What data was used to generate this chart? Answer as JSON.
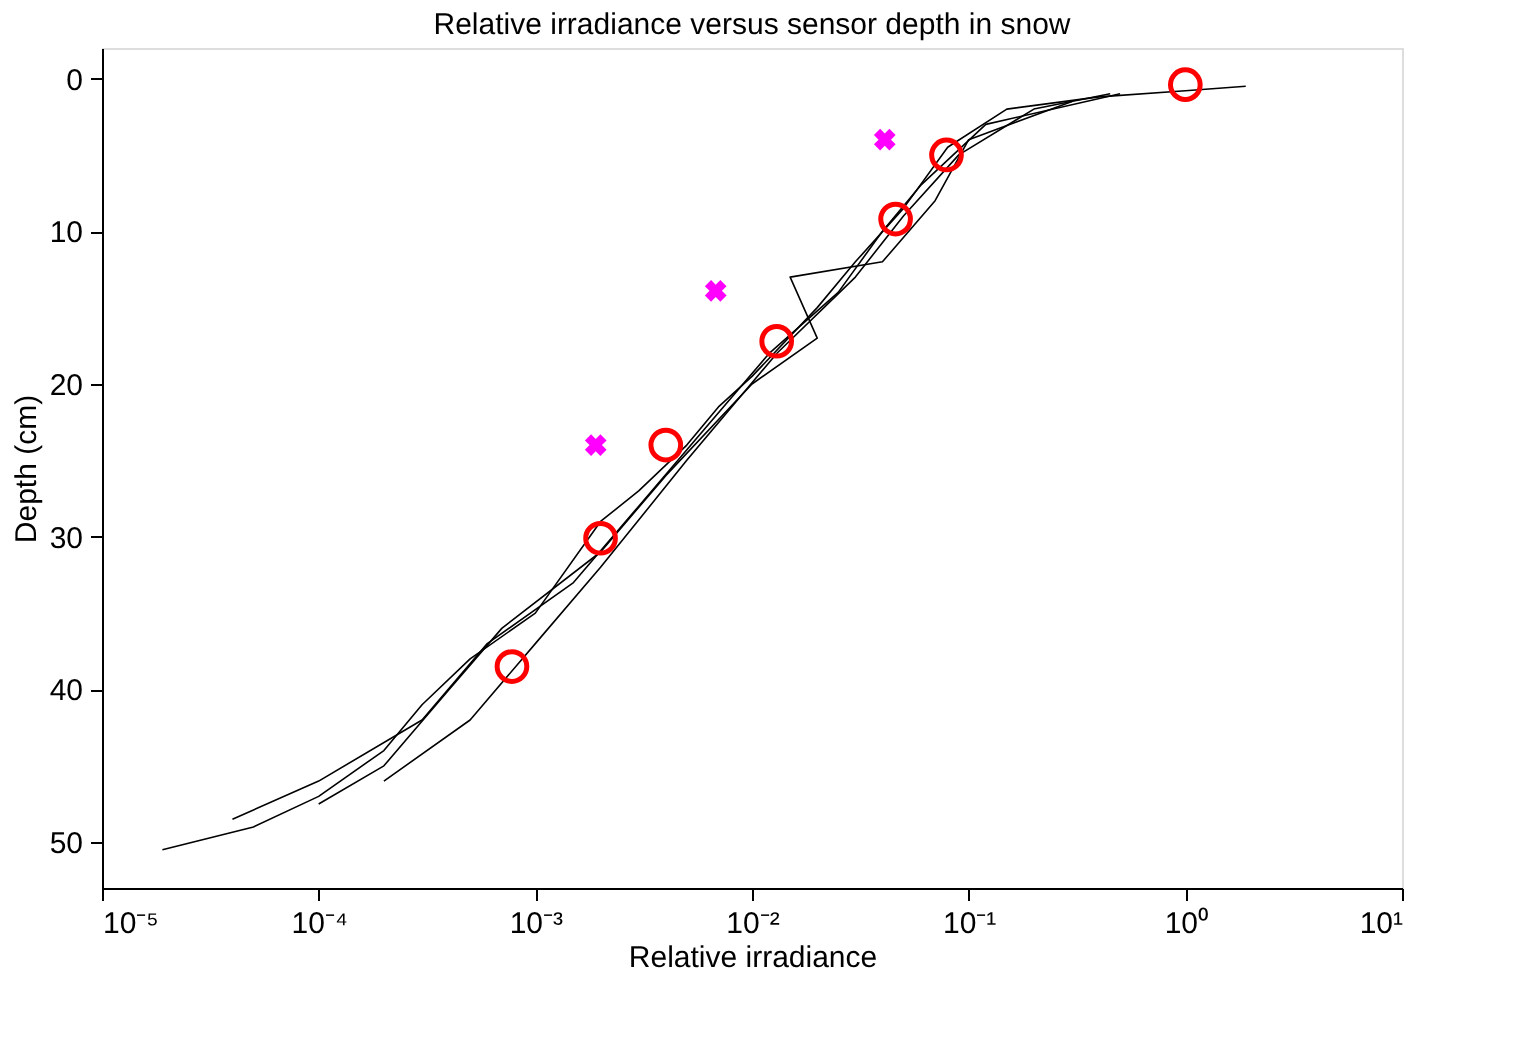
{
  "chart_data": {
    "type": "line",
    "title": "Relative irradiance versus sensor depth in snow",
    "xlabel": "Relative irradiance",
    "ylabel": "Depth (cm)",
    "log": "x",
    "grid": false,
    "xlim": [
      1e-05,
      10
    ],
    "ylim": [
      53,
      -2
    ],
    "xticks": [
      {
        "value": 1e-05,
        "label": "10⁻⁵"
      },
      {
        "value": 0.0001,
        "label": "10⁻⁴"
      },
      {
        "value": 0.001,
        "label": "10⁻³"
      },
      {
        "value": 0.01,
        "label": "10⁻²"
      },
      {
        "value": 0.1,
        "label": "10⁻¹"
      },
      {
        "value": 1,
        "label": "10⁰"
      },
      {
        "value": 10,
        "label": "10¹"
      }
    ],
    "yticks": [
      0,
      10,
      20,
      30,
      40,
      50
    ],
    "series": [
      {
        "color": "#000000",
        "x": [
          1.9e-05,
          5e-05,
          0.0001,
          0.0002,
          0.0003,
          0.0005,
          0.001,
          0.002,
          0.003,
          0.005,
          0.007,
          0.01,
          0.02,
          0.03,
          0.05,
          0.08,
          0.15,
          0.4,
          1,
          1.9
        ],
        "values": [
          50.5,
          49,
          47,
          44,
          41,
          38,
          35,
          29,
          27,
          24,
          21.5,
          19.5,
          15,
          12,
          8.5,
          4.5,
          2,
          1.2,
          0.8,
          0.5
        ]
      },
      {
        "color": "#000000",
        "x": [
          4e-05,
          0.0001,
          0.0003,
          0.0006,
          0.0015,
          0.003,
          0.006,
          0.012,
          0.025,
          0.04,
          0.06,
          0.12,
          0.5
        ],
        "values": [
          48.5,
          46,
          42,
          37,
          33,
          28,
          23,
          18,
          14,
          10,
          7,
          3,
          1
        ]
      },
      {
        "color": "#000000",
        "x": [
          0.0001,
          0.0002,
          0.0004,
          0.0007,
          0.002,
          0.004,
          0.01,
          0.02,
          0.015,
          0.04,
          0.07,
          0.1,
          0.3
        ],
        "values": [
          47.5,
          45,
          40,
          36,
          31,
          26,
          20,
          17,
          13,
          12,
          8,
          4,
          1.5
        ]
      },
      {
        "color": "#000000",
        "x": [
          0.0002,
          0.0005,
          0.001,
          0.002,
          0.005,
          0.013,
          0.03,
          0.05,
          0.09,
          0.2,
          0.45
        ],
        "values": [
          46,
          42,
          37,
          32,
          25,
          18,
          13,
          9,
          5,
          2,
          1
        ]
      },
      {
        "type": "scatter",
        "marker": "circle",
        "color": "#ff0000",
        "x": [
          1.0,
          0.079,
          0.046,
          0.013,
          0.004,
          0.002,
          0.00078
        ],
        "values": [
          0.4,
          5,
          9.2,
          17.2,
          24,
          30.1,
          38.5
        ]
      },
      {
        "type": "scatter",
        "marker": "cross",
        "color": "#ff00ff",
        "x": [
          0.041,
          0.0068,
          0.0019
        ],
        "values": [
          4,
          13.9,
          24
        ]
      }
    ]
  }
}
